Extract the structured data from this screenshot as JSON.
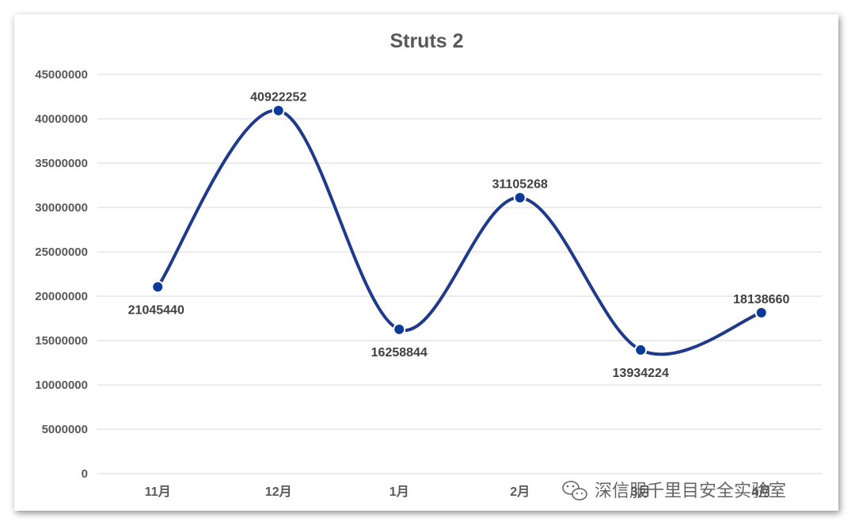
{
  "chart_data": {
    "type": "line",
    "title": "Struts 2",
    "categories": [
      "11月",
      "12月",
      "1月",
      "2月",
      "3月",
      "4月"
    ],
    "values": [
      21045440,
      40922252,
      16258844,
      31105268,
      13934224,
      18138660
    ],
    "ylim": [
      0,
      45000000
    ],
    "yticks": [
      0,
      5000000,
      10000000,
      15000000,
      20000000,
      25000000,
      30000000,
      35000000,
      40000000,
      45000000
    ],
    "grid": true,
    "smooth": true,
    "line_color": "#1f3a8c",
    "marker_color": "#0b3a99"
  },
  "watermark": {
    "text": "深信服千里目安全实验室",
    "icon": "wechat-icon"
  }
}
